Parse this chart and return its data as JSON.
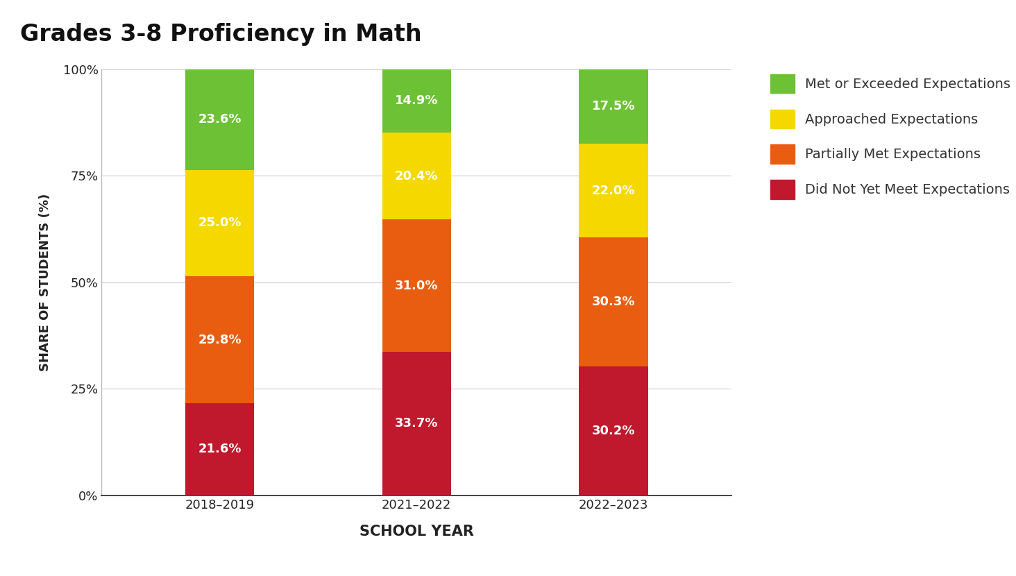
{
  "title": "Grades 3-8 Proficiency in Math",
  "categories": [
    "2018–2019",
    "2021–2022",
    "2022–2023"
  ],
  "segments": {
    "did_not_meet": [
      21.6,
      33.7,
      30.2
    ],
    "partially_met": [
      29.8,
      31.0,
      30.3
    ],
    "approached": [
      25.0,
      20.4,
      22.0
    ],
    "met_exceeded": [
      23.6,
      14.9,
      17.5
    ]
  },
  "colors": {
    "did_not_meet": "#c0182c",
    "partially_met": "#e85d10",
    "approached": "#f5d800",
    "met_exceeded": "#6dc135"
  },
  "legend_labels": [
    "Met or Exceeded Expectations",
    "Approached Expectations",
    "Partially Met Expectations",
    "Did Not Yet Meet Expectations"
  ],
  "ylabel": "SHARE OF STUDENTS (%)",
  "xlabel": "SCHOOL YEAR",
  "yticks": [
    0,
    25,
    50,
    75,
    100
  ],
  "ytick_labels": [
    "0%",
    "25%",
    "50%",
    "75%",
    "100%"
  ],
  "bar_width": 0.35,
  "background_color": "#ffffff",
  "title_fontsize": 24,
  "label_fontsize": 13,
  "tick_fontsize": 13,
  "legend_fontsize": 14,
  "value_fontsize": 13
}
